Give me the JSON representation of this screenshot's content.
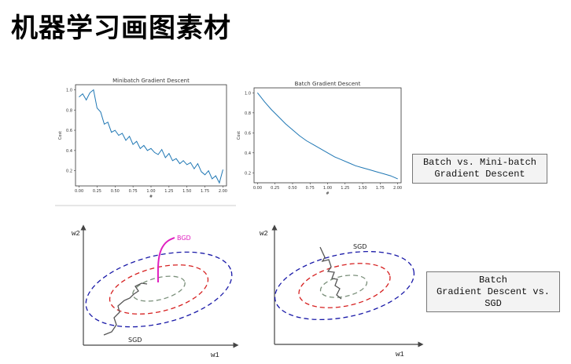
{
  "page": {
    "title": "机器学习画图素材"
  },
  "labels": {
    "box1": "Batch vs. Mini-batch\nGradient Descent",
    "box2": "Batch\nGradient Descent vs.\nSGD"
  },
  "colors": {
    "line": "#1f77b4",
    "outer_ellipse": "#1a1aa8",
    "mid_ellipse": "#d62020",
    "inner_ellipse": "#7a8f7a",
    "bgd_path": "#e020c0",
    "sgd_path": "#555555"
  },
  "chart_data": [
    {
      "type": "line",
      "title": "Minibatch Gradient Descent",
      "xlabel": "#",
      "ylabel": "Cost",
      "xlim": [
        -0.05,
        2.05
      ],
      "ylim": [
        0.05,
        1.05
      ],
      "xticks": [
        0.0,
        0.25,
        0.5,
        0.75,
        1.0,
        1.25,
        1.5,
        1.75,
        2.0
      ],
      "xtick_labels": [
        "0.00",
        "0.25",
        "0.50",
        "0.75",
        "1.00",
        "1.25",
        "1.50",
        "1.75",
        "2.00"
      ],
      "yticks": [
        0.2,
        0.4,
        0.6,
        0.8,
        1.0
      ],
      "ytick_labels": [
        "0.2",
        "0.4",
        "0.6",
        "0.8",
        "1.0"
      ],
      "series": [
        {
          "x": [
            0.0,
            0.05,
            0.1,
            0.15,
            0.2,
            0.25,
            0.3,
            0.35,
            0.4,
            0.45,
            0.5,
            0.55,
            0.6,
            0.65,
            0.7,
            0.75,
            0.8,
            0.85,
            0.9,
            0.95,
            1.0,
            1.05,
            1.1,
            1.15,
            1.2,
            1.25,
            1.3,
            1.35,
            1.4,
            1.45,
            1.5,
            1.55,
            1.6,
            1.65,
            1.7,
            1.75,
            1.8,
            1.85,
            1.9,
            1.95,
            2.0
          ],
          "y": [
            0.93,
            0.96,
            0.9,
            0.97,
            1.0,
            0.82,
            0.78,
            0.66,
            0.68,
            0.58,
            0.6,
            0.55,
            0.57,
            0.5,
            0.54,
            0.46,
            0.49,
            0.42,
            0.45,
            0.4,
            0.42,
            0.38,
            0.36,
            0.41,
            0.33,
            0.37,
            0.3,
            0.32,
            0.27,
            0.3,
            0.26,
            0.28,
            0.22,
            0.27,
            0.19,
            0.16,
            0.2,
            0.12,
            0.15,
            0.08,
            0.21
          ]
        }
      ]
    },
    {
      "type": "line",
      "title": "Batch Gradient Descent",
      "xlabel": "#",
      "ylabel": "Cost",
      "xlim": [
        -0.05,
        2.05
      ],
      "ylim": [
        0.1,
        1.05
      ],
      "xticks": [
        0.0,
        0.25,
        0.5,
        0.75,
        1.0,
        1.25,
        1.5,
        1.75,
        2.0
      ],
      "xtick_labels": [
        "0.00",
        "0.25",
        "0.50",
        "0.75",
        "1.00",
        "1.25",
        "1.50",
        "1.75",
        "2.00"
      ],
      "yticks": [
        0.2,
        0.4,
        0.6,
        0.8,
        1.0
      ],
      "ytick_labels": [
        "0.2",
        "0.4",
        "0.6",
        "0.8",
        "1.0"
      ],
      "series": [
        {
          "x": [
            0.0,
            0.1,
            0.2,
            0.3,
            0.4,
            0.5,
            0.6,
            0.7,
            0.8,
            0.9,
            1.0,
            1.1,
            1.2,
            1.3,
            1.4,
            1.5,
            1.6,
            1.7,
            1.8,
            1.9,
            2.0
          ],
          "y": [
            1.0,
            0.91,
            0.83,
            0.76,
            0.69,
            0.63,
            0.57,
            0.52,
            0.48,
            0.44,
            0.4,
            0.36,
            0.33,
            0.3,
            0.27,
            0.25,
            0.23,
            0.21,
            0.19,
            0.17,
            0.14
          ]
        }
      ]
    }
  ],
  "diagrams": {
    "left": {
      "x_label": "w1",
      "y_label": "w2",
      "bgd_label": "BGD",
      "sgd_label": "SGD"
    },
    "right": {
      "x_label": "w1",
      "y_label": "w2",
      "sgd_label": "SGD"
    }
  }
}
